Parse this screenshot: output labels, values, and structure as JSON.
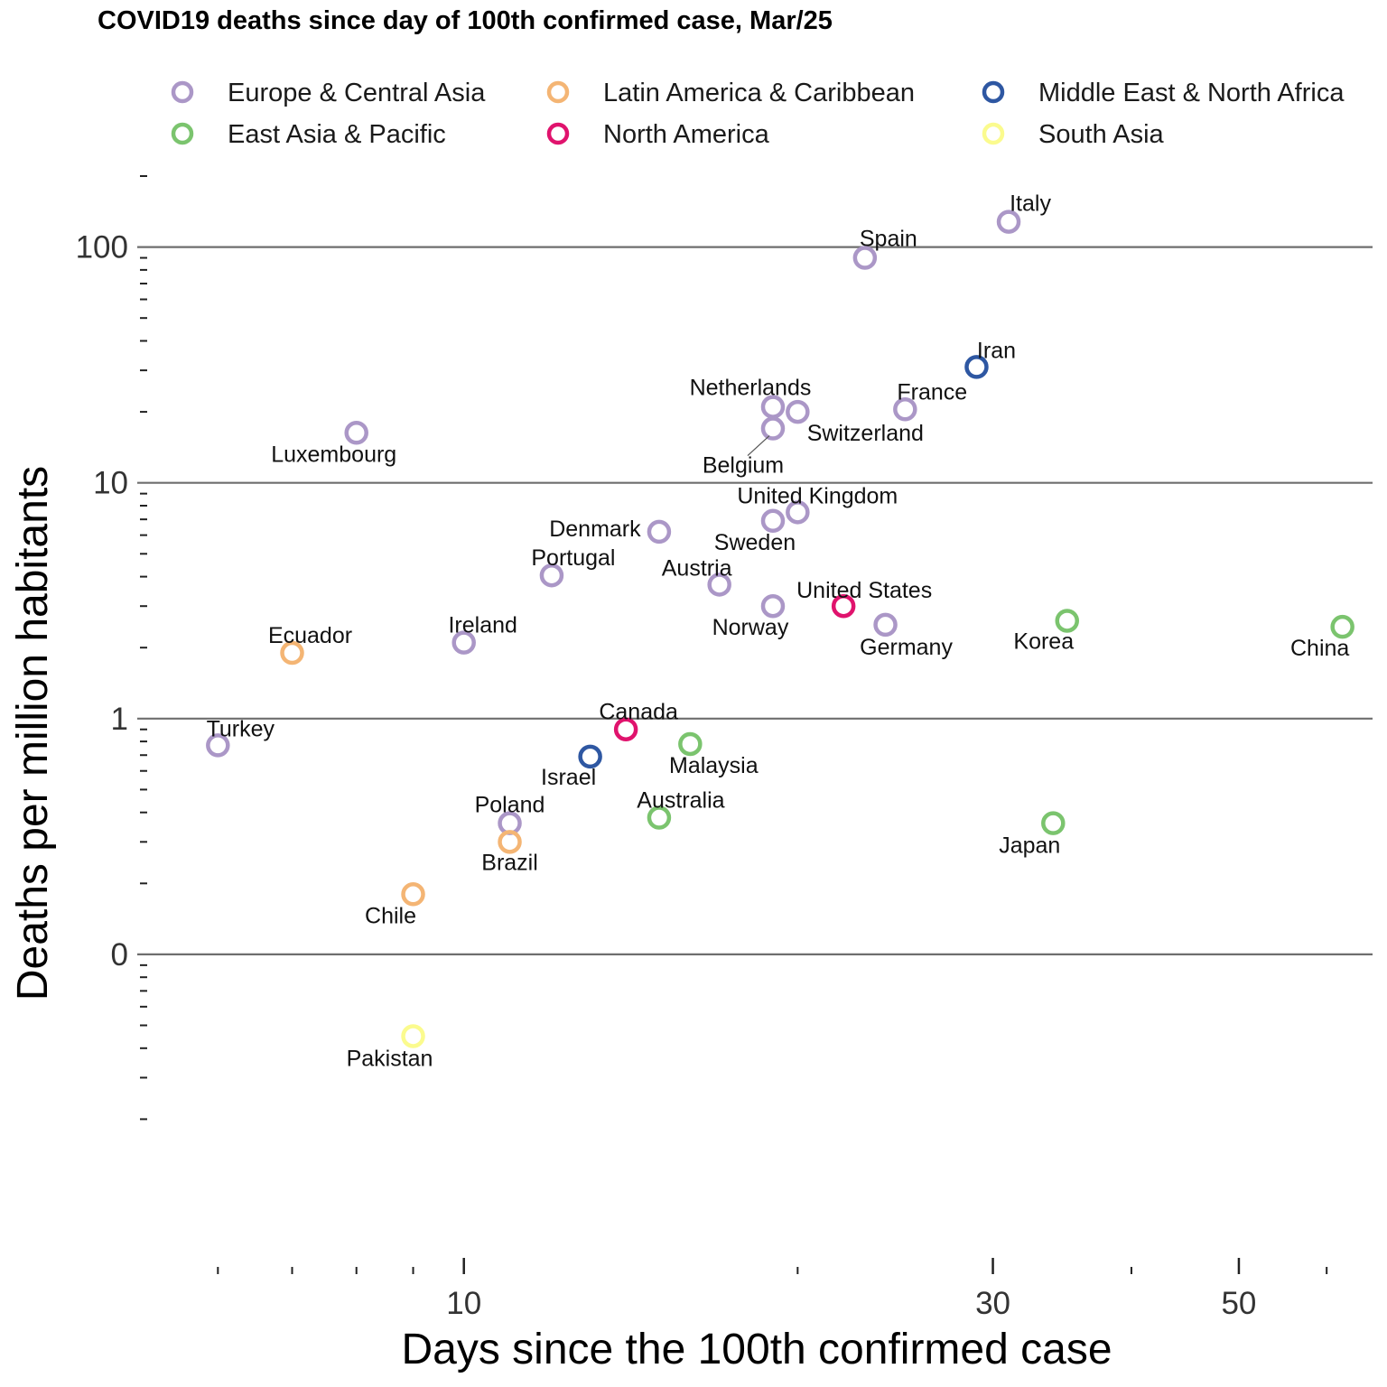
{
  "chart_data": {
    "type": "scatter",
    "title": "COVID19 deaths since day of 100th confirmed case, Mar/25",
    "xlabel": "Days since the 100th confirmed case",
    "ylabel": "Deaths per million habitants",
    "x_scale": "log",
    "y_scale": "log",
    "xlim": [
      5.2,
      66
    ],
    "ylim": [
      0.0053,
      209
    ],
    "x_ticks": [
      {
        "value": 10,
        "label": "10"
      },
      {
        "value": 30,
        "label": "30"
      },
      {
        "value": 50,
        "label": "50"
      }
    ],
    "y_ticks": [
      {
        "value": 0.1,
        "label": "0"
      },
      {
        "value": 1,
        "label": "1"
      },
      {
        "value": 10,
        "label": "10"
      },
      {
        "value": 100,
        "label": "100"
      }
    ],
    "grid": "horizontal at major y ticks",
    "legend_position": "top",
    "series": [
      {
        "name": "Europe & Central Asia",
        "color": "#ab97c7",
        "points": [
          {
            "label": "Italy",
            "x": 31,
            "y": 128
          },
          {
            "label": "Spain",
            "x": 23,
            "y": 90
          },
          {
            "label": "France",
            "x": 25,
            "y": 20.5
          },
          {
            "label": "Netherlands",
            "x": 19,
            "y": 21
          },
          {
            "label": "Switzerland",
            "x": 20,
            "y": 20
          },
          {
            "label": "Belgium",
            "x": 19,
            "y": 17
          },
          {
            "label": "Luxembourg",
            "x": 8,
            "y": 16.3
          },
          {
            "label": "United Kingdom",
            "x": 20,
            "y": 7.5
          },
          {
            "label": "Sweden",
            "x": 19,
            "y": 6.9
          },
          {
            "label": "Denmark",
            "x": 15,
            "y": 6.2
          },
          {
            "label": "Portugal",
            "x": 12,
            "y": 4.05
          },
          {
            "label": "Austria",
            "x": 17,
            "y": 3.7
          },
          {
            "label": "Norway",
            "x": 19,
            "y": 3.0
          },
          {
            "label": "Germany",
            "x": 24,
            "y": 2.5
          },
          {
            "label": "Ireland",
            "x": 10,
            "y": 2.1
          },
          {
            "label": "Turkey",
            "x": 6,
            "y": 0.77
          },
          {
            "label": "Poland",
            "x": 11,
            "y": 0.36
          }
        ]
      },
      {
        "name": "Latin America & Caribbean",
        "color": "#f4b574",
        "points": [
          {
            "label": "Ecuador",
            "x": 7,
            "y": 1.9
          },
          {
            "label": "Brazil",
            "x": 11,
            "y": 0.3
          },
          {
            "label": "Chile",
            "x": 9,
            "y": 0.18
          }
        ]
      },
      {
        "name": "Middle East & North Africa",
        "color": "#2e57a2",
        "points": [
          {
            "label": "Iran",
            "x": 29,
            "y": 31
          },
          {
            "label": "Israel",
            "x": 13,
            "y": 0.69
          }
        ]
      },
      {
        "name": "East Asia & Pacific",
        "color": "#7bc46e",
        "points": [
          {
            "label": "Korea",
            "x": 35,
            "y": 2.6
          },
          {
            "label": "China",
            "x": 62,
            "y": 2.45
          },
          {
            "label": "Malaysia",
            "x": 16,
            "y": 0.78
          },
          {
            "label": "Australia",
            "x": 15,
            "y": 0.38
          },
          {
            "label": "Japan",
            "x": 34,
            "y": 0.36
          }
        ]
      },
      {
        "name": "North America",
        "color": "#e0136d",
        "points": [
          {
            "label": "United States",
            "x": 22,
            "y": 3.0
          },
          {
            "label": "Canada",
            "x": 14,
            "y": 0.9
          }
        ]
      },
      {
        "name": "South Asia",
        "color": "#fbfb8e",
        "points": [
          {
            "label": "Pakistan",
            "x": 9,
            "y": 0.045
          }
        ]
      }
    ]
  }
}
